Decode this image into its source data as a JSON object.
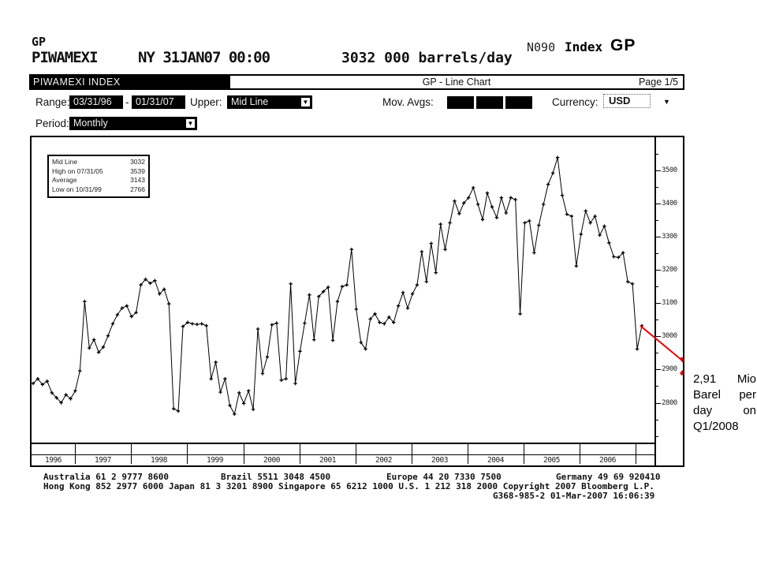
{
  "header": {
    "function_code": "GP",
    "ticker": "PIWAMEXI",
    "session_info": "NY 31JAN07 00:00",
    "value_info": "3032 000 barrels/day",
    "screen_number": "N090",
    "security_type": "Index",
    "function_label": "GP"
  },
  "title_bar": {
    "security_title": "PIWAMEXI INDEX",
    "chart_title": "GP - Line Chart",
    "page": "Page 1/5"
  },
  "controls": {
    "range_label": "Range:",
    "range_start": "03/31/96",
    "range_separator": "-",
    "range_end": "01/31/07",
    "upper_label": "Upper:",
    "upper_value": "Mid Line",
    "mov_avgs_label": "Mov. Avgs:",
    "currency_label": "Currency:",
    "currency_value": "USD",
    "period_label": "Period:",
    "period_value": "Monthly",
    "dropdown_arrow": "▼"
  },
  "legend": {
    "rows": [
      {
        "label": "Mid Line",
        "value": "3032"
      },
      {
        "label": "High on 07/31/05",
        "value": "3539"
      },
      {
        "label": "Average",
        "value": "3143"
      },
      {
        "label": "Low on 10/31/99",
        "value": "2766"
      }
    ]
  },
  "annotation": {
    "lines": [
      "2,91 Mio",
      "Barel per",
      "day on",
      "Q1/2008"
    ],
    "marker_value": 2910,
    "color": "#ee0000"
  },
  "chart_data": {
    "type": "line",
    "title": "GP - Line Chart",
    "unit": "000 barrels/day",
    "frequency": "monthly",
    "x_start": "1996-03",
    "x_end": "2007-01",
    "ylim": [
      2680,
      3600
    ],
    "y_ticks": [
      2800,
      2900,
      3000,
      3100,
      3200,
      3300,
      3400,
      3500
    ],
    "y_minor_step": 50,
    "x_year_labels": [
      "1996",
      "1997",
      "1998",
      "1999",
      "2000",
      "2001",
      "2002",
      "2003",
      "2004",
      "2005",
      "2006"
    ],
    "grid": false,
    "legend_position": "top-left-box",
    "line_color": "#000000",
    "marker": "plus",
    "series": [
      {
        "name": "PIWAMEXI Index Mid Line",
        "values": [
          2858,
          2872,
          2855,
          2865,
          2830,
          2815,
          2800,
          2824,
          2812,
          2836,
          2896,
          3105,
          2965,
          2990,
          2952,
          2968,
          3002,
          3038,
          3065,
          3085,
          3092,
          3060,
          3072,
          3155,
          3172,
          3160,
          3168,
          3128,
          3142,
          3098,
          2782,
          2775,
          3030,
          3042,
          3038,
          3036,
          3038,
          3032,
          2872,
          2922,
          2832,
          2872,
          2792,
          2766,
          2830,
          2798,
          2836,
          2780,
          3022,
          2888,
          2938,
          3035,
          3040,
          2868,
          2872,
          3158,
          2858,
          2955,
          3040,
          3125,
          2990,
          3120,
          3135,
          3148,
          2988,
          3105,
          3150,
          3155,
          3262,
          3082,
          2982,
          2962,
          3052,
          3068,
          3042,
          3038,
          3058,
          3042,
          3092,
          3132,
          3085,
          3128,
          3155,
          3255,
          3165,
          3280,
          3192,
          3338,
          3262,
          3342,
          3408,
          3370,
          3402,
          3418,
          3448,
          3398,
          3352,
          3432,
          3390,
          3358,
          3418,
          3372,
          3418,
          3412,
          3068,
          3342,
          3348,
          3252,
          3335,
          3398,
          3458,
          3492,
          3539,
          3425,
          3368,
          3362,
          3212,
          3308,
          3378,
          3342,
          3362,
          3305,
          3332,
          3282,
          3240,
          3238,
          3252,
          3165,
          3158,
          2962,
          3032
        ]
      }
    ],
    "stats": {
      "last": 3032,
      "high": 3539,
      "high_date": "07/31/05",
      "average": 3143,
      "low": 2766,
      "low_date": "10/31/99"
    }
  },
  "footer": {
    "line1_segments": [
      "Australia 61 2 9777 8600",
      "Brazil 5511 3048 4500",
      "Europe 44 20 7330 7500",
      "Germany 49 69 920410"
    ],
    "line2": "Hong Kong 852 2977 6000 Japan 81 3 3201 8900 Singapore 65 6212 1000 U.S. 1 212 318 2000 Copyright 2007 Bloomberg L.P.",
    "line3": "G368-985-2 01-Mar-2007 16:06:39"
  }
}
